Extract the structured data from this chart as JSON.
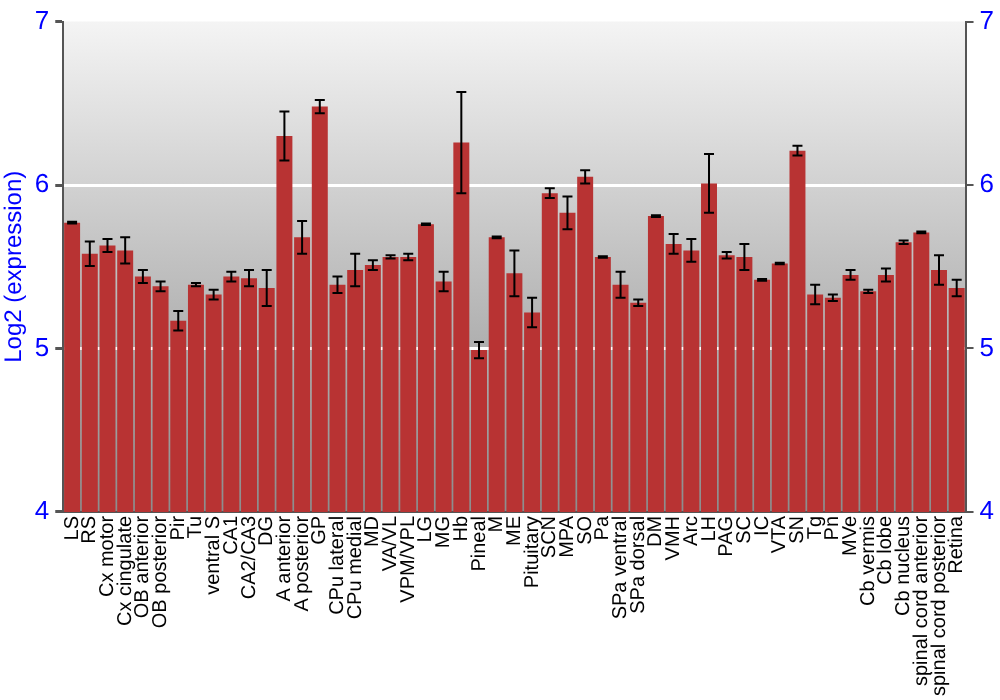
{
  "chart_data": {
    "type": "bar",
    "ylabel": "Log2 (expression)",
    "categories": [
      "LS",
      "RS",
      "Cx motor",
      "Cx cingulate",
      "OB anterior",
      "OB posterior",
      "Pir",
      "Tu",
      "ventral S",
      "CA1",
      "CA2/CA3",
      "DG",
      "A anterior",
      "A posterior",
      "GP",
      "CPu lateral",
      "CPu medial",
      "MD",
      "VA/VL",
      "VPM/VPL",
      "LG",
      "MG",
      "Hb",
      "Pineal",
      "M",
      "ME",
      "Pituitary",
      "SCN",
      "MPA",
      "SO",
      "Pa",
      "SPa ventral",
      "SPa dorsal",
      "DM",
      "VMH",
      "Arc",
      "LH",
      "PAG",
      "SC",
      "IC",
      "VTA",
      "SN",
      "Tg",
      "Pn",
      "MVe",
      "Cb vermis",
      "Cb lobe",
      "Cb nucleus",
      "spinal cord anterior",
      "spinal cord posterior",
      "Retina"
    ],
    "values": [
      5.77,
      5.58,
      5.63,
      5.6,
      5.44,
      5.38,
      5.17,
      5.39,
      5.33,
      5.44,
      5.43,
      5.37,
      6.3,
      5.68,
      6.48,
      5.39,
      5.48,
      5.51,
      5.56,
      5.56,
      5.76,
      5.41,
      6.26,
      4.99,
      5.68,
      5.46,
      5.22,
      5.95,
      5.83,
      6.05,
      5.56,
      5.39,
      5.28,
      5.81,
      5.64,
      5.6,
      6.01,
      5.57,
      5.56,
      5.42,
      5.52,
      6.21,
      5.33,
      5.31,
      5.45,
      5.35,
      5.45,
      5.65,
      5.71,
      5.48,
      5.37
    ],
    "errors": [
      0.005,
      0.075,
      0.04,
      0.08,
      0.04,
      0.03,
      0.06,
      0.01,
      0.03,
      0.03,
      0.05,
      0.11,
      0.15,
      0.1,
      0.04,
      0.05,
      0.1,
      0.03,
      0.01,
      0.02,
      0.005,
      0.06,
      0.31,
      0.05,
      0.005,
      0.14,
      0.09,
      0.03,
      0.1,
      0.04,
      0.005,
      0.08,
      0.02,
      0.005,
      0.06,
      0.07,
      0.18,
      0.02,
      0.08,
      0.005,
      0.005,
      0.03,
      0.06,
      0.02,
      0.03,
      0.01,
      0.04,
      0.01,
      0.005,
      0.09,
      0.05
    ],
    "color": "#b83333",
    "ylim": [
      4,
      7
    ],
    "yticks": [
      4,
      5,
      6,
      7
    ],
    "y2lim": [
      4,
      7
    ],
    "y2ticks": [
      4,
      5,
      6,
      7
    ],
    "grid": "y",
    "legend": false
  }
}
